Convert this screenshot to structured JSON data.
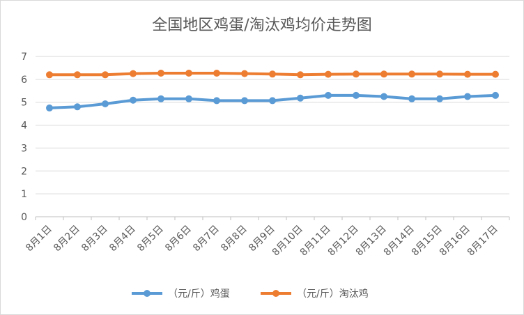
{
  "chart_data": {
    "type": "line",
    "title": "全国地区鸡蛋/淘汰鸡均价走势图",
    "categories": [
      "8月1日",
      "8月2日",
      "8月3日",
      "8月4日",
      "8月5日",
      "8月6日",
      "8月7日",
      "8月8日",
      "8月9日",
      "8月10日",
      "8月11日",
      "8月12日",
      "8月13日",
      "8月14日",
      "8月15日",
      "8月16日",
      "8月17日"
    ],
    "series": [
      {
        "name": "（元/斤）鸡蛋",
        "color": "#5b9bd5",
        "values": [
          4.75,
          4.8,
          4.93,
          5.09,
          5.15,
          5.15,
          5.07,
          5.07,
          5.07,
          5.18,
          5.3,
          5.3,
          5.25,
          5.15,
          5.15,
          5.25,
          5.3
        ]
      },
      {
        "name": "（元/斤）淘汰鸡",
        "color": "#ed7d31",
        "values": [
          6.2,
          6.2,
          6.2,
          6.25,
          6.27,
          6.27,
          6.27,
          6.25,
          6.23,
          6.2,
          6.22,
          6.23,
          6.23,
          6.23,
          6.23,
          6.22,
          6.22
        ]
      }
    ],
    "ylim": [
      0,
      7
    ],
    "yticks": [
      "0",
      "1",
      "2",
      "3",
      "4",
      "5",
      "6",
      "7"
    ],
    "grid": true,
    "legend_position": "bottom"
  }
}
